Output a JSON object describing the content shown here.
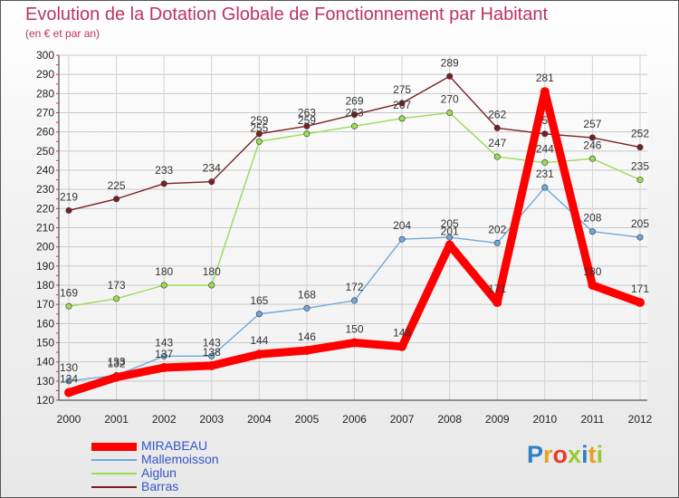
{
  "title": "Evolution de la Dotation Globale de Fonctionnement par Habitant",
  "subtitle": "(en € et par an)",
  "brand": {
    "logo_text": "Proxiti",
    "letter_colors": [
      "#2f7fc8",
      "#e8a020",
      "#e63c2a",
      "#9bc934",
      "#2f7fc8",
      "#e8a020",
      "#9bc934"
    ]
  },
  "chart_data": {
    "type": "line",
    "x": [
      "2000",
      "2001",
      "2002",
      "2003",
      "2004",
      "2005",
      "2006",
      "2007",
      "2008",
      "2009",
      "2010",
      "2011",
      "2012"
    ],
    "ylim": [
      120,
      300
    ],
    "yticks": [
      120,
      130,
      140,
      150,
      160,
      170,
      180,
      190,
      200,
      210,
      220,
      230,
      240,
      250,
      260,
      270,
      280,
      290,
      300
    ],
    "grid": true,
    "series": [
      {
        "name": "Barras",
        "color": "#7a2020",
        "values": [
          219,
          225,
          233,
          234,
          259,
          263,
          269,
          275,
          289,
          262,
          259,
          257,
          252
        ]
      },
      {
        "name": "Aiglun",
        "color": "#99dd55",
        "values": [
          169,
          173,
          180,
          180,
          255,
          259,
          263,
          267,
          270,
          247,
          244,
          246,
          235
        ]
      },
      {
        "name": "Mallemoisson",
        "color": "#6fa8dc",
        "values": [
          130,
          133,
          143,
          143,
          165,
          168,
          172,
          204,
          205,
          202,
          231,
          208,
          205
        ]
      },
      {
        "name": "MIRABEAU",
        "color": "#ff0000",
        "values": [
          124,
          132,
          137,
          138,
          144,
          146,
          150,
          148,
          201,
          171,
          281,
          180,
          171
        ]
      }
    ],
    "legend": [
      "MIRABEAU",
      "Mallemoisson",
      "Aiglun",
      "Barras"
    ]
  }
}
